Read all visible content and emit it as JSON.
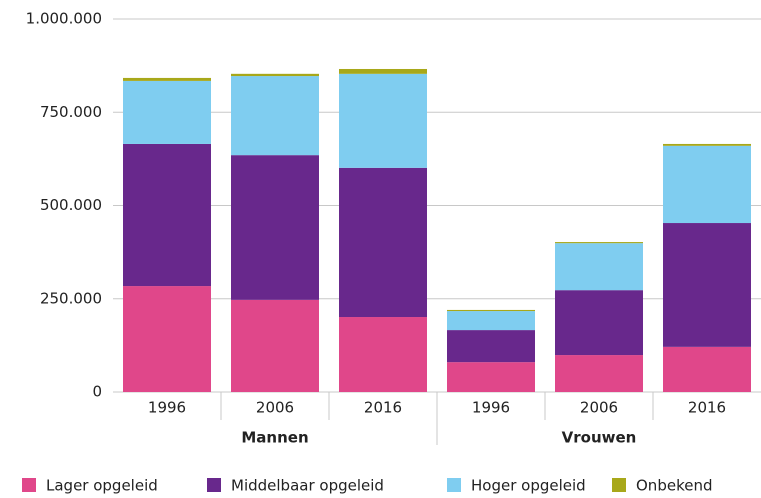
{
  "chart_data": {
    "type": "stacked-bar",
    "categories": [
      "1996",
      "2006",
      "2016",
      "1996",
      "2006",
      "2016"
    ],
    "groups": [
      "Mannen",
      "Vrouwen"
    ],
    "series": [
      {
        "name": "Lager opgeleid",
        "color": "#e0478a",
        "values": [
          284000,
          247000,
          201000,
          80000,
          99000,
          121000
        ]
      },
      {
        "name": "Middelbaar opgeleid",
        "color": "#68288c",
        "values": [
          381000,
          388000,
          400000,
          86000,
          174000,
          332000
        ]
      },
      {
        "name": "Hoger opgeleid",
        "color": "#7fcdf0",
        "values": [
          169000,
          212000,
          252000,
          51000,
          126000,
          207000
        ]
      },
      {
        "name": "Onbekend",
        "color": "#a8a81a",
        "values": [
          8000,
          6000,
          13000,
          3000,
          3000,
          5000
        ]
      }
    ],
    "ylim": [
      0,
      1000000
    ],
    "yticks": [
      0,
      {
        "value": 250000,
        "label": "250.000"
      },
      {
        "value": 500000,
        "label": "500.000"
      },
      {
        "value": 750000,
        "label": "750.000"
      },
      {
        "value": 1000000,
        "label": "1.000.000"
      }
    ],
    "grid": true,
    "legend": "bottom"
  }
}
